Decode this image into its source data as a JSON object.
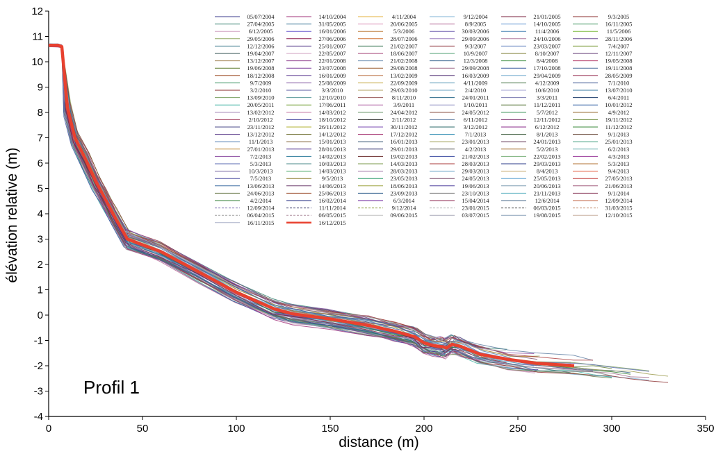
{
  "chart_data": {
    "type": "line",
    "xlabel": "distance (m)",
    "ylabel": "élévation relative (m)",
    "xlim": [
      0,
      350
    ],
    "ylim": [
      -4,
      12
    ],
    "x_ticks": [
      0,
      50,
      100,
      150,
      200,
      250,
      300,
      350
    ],
    "y_ticks": [
      -4,
      -3,
      -2,
      -1,
      0,
      1,
      2,
      3,
      4,
      5,
      6,
      7,
      8,
      9,
      10,
      11,
      12
    ],
    "annotation": "Profil 1",
    "grid": false,
    "legend_position": "top-right",
    "legend_entries": [
      "05/07/2004",
      "14/10/2004",
      "4/11/2004",
      "9/12/2004",
      "21/01/2005",
      "9/3/2005",
      "27/04/2005",
      "31/05/2005",
      "20/06/2005",
      "8/9/2005",
      "14/10/2005",
      "16/11/2005",
      "6/12/2005",
      "16/01/2006",
      "5/3/2006",
      "30/03/2006",
      "11/4/2006",
      "11/5/2006",
      "29/05/2006",
      "27/06/2006",
      "28/07/2006",
      "29/09/2006",
      "24/10/2006",
      "28/11/2006",
      "12/12/2006",
      "25/01/2007",
      "21/02/2007",
      "9/3/2007",
      "23/03/2007",
      "7/4/2007",
      "19/04/2007",
      "22/05/2007",
      "18/06/2007",
      "10/9/2007",
      "8/10/2007",
      "12/11/2007",
      "13/12/2007",
      "22/01/2008",
      "21/02/2008",
      "12/3/2008",
      "8/4/2008",
      "19/05/2008",
      "19/06/2008",
      "23/07/2008",
      "29/08/2008",
      "29/09/2008",
      "17/10/2008",
      "19/11/2008",
      "18/12/2008",
      "16/01/2009",
      "13/02/2009",
      "16/03/2009",
      "29/04/2009",
      "28/05/2009",
      "9/7/2009",
      "25/08/2009",
      "22/09/2009",
      "4/11/2009",
      "4/12/2009",
      "7/1/2010",
      "3/2/2010",
      "3/3/2010",
      "29/03/2010",
      "2/4/2010",
      "10/6/2010",
      "13/07/2010",
      "13/09/2010",
      "12/10/2010",
      "8/11/2010",
      "24/01/2011",
      "3/3/2011",
      "6/4/2011",
      "20/05/2011",
      "17/06/2011",
      "3/9/2011",
      "1/10/2011",
      "11/12/2011",
      "10/01/2012",
      "13/02/2012",
      "14/03/2012",
      "24/04/2012",
      "24/05/2012",
      "5/7/2012",
      "4/9/2012",
      "2/10/2012",
      "18/10/2012",
      "2/11/2012",
      "6/11/2012",
      "12/11/2012",
      "19/11/2012",
      "23/11/2012",
      "26/11/2012",
      "30/11/2012",
      "3/12/2012",
      "6/12/2012",
      "11/12/2012",
      "13/12/2012",
      "14/12/2012",
      "17/12/2012",
      "7/1/2013",
      "8/1/2013",
      "9/1/2013",
      "11/1/2013",
      "15/01/2013",
      "16/01/2013",
      "23/01/2013",
      "24/01/2013",
      "25/01/2013",
      "27/01/2013",
      "28/01/2013",
      "29/01/2013",
      "4/2/2013",
      "5/2/2013",
      "6/2/2013",
      "7/2/2013",
      "14/02/2013",
      "19/02/2013",
      "21/02/2013",
      "22/02/2013",
      "4/3/2013",
      "5/3/2013",
      "10/03/2013",
      "14/03/2013",
      "28/03/2013",
      "29/03/2013",
      "5/3/2013",
      "10/3/2013",
      "14/03/2013",
      "28/03/2013",
      "29/03/2013",
      "8/4/2013",
      "9/4/2013",
      "7/5/2013",
      "9/5/2013",
      "23/05/2013",
      "24/05/2013",
      "25/05/2013",
      "27/05/2013",
      "13/06/2013",
      "14/06/2013",
      "18/06/2013",
      "19/06/2013",
      "20/06/2013",
      "21/06/2013",
      "24/06/2013",
      "25/06/2013",
      "23/09/2013",
      "23/10/2013",
      "21/11/2013",
      "9/1/2014",
      "4/2/2014",
      "16/02/2014",
      "6/3/2014",
      "15/04/2014",
      "12/6/2014",
      "12/09/2014",
      "12/09/2014",
      "11/11/2014",
      "9/12/2014",
      "23/01/2015",
      "06/03/2015",
      "31/03/2015",
      "06/04/2015",
      "06/05/2015",
      "09/06/2015",
      "03/07/2015",
      "19/08/2015",
      "12/10/2015",
      "16/11/2015",
      "16/12/2015"
    ],
    "legend_colors": [
      "#3b3b8c",
      "#a0307a",
      "#e3b23c",
      "#7fb3d5",
      "#7a1f3d",
      "#8b2e2e",
      "#2e7d6b",
      "#2f6f8f",
      "#d98cb3",
      "#b06090",
      "#5a8fd0",
      "#3a8f5a",
      "#d0a0c0",
      "#6a5acd",
      "#c08040",
      "#7060b0",
      "#4682b4",
      "#7cba3c",
      "#8fa860",
      "#8b1a4a",
      "#d07030",
      "#9a7fc0",
      "#b07aa0",
      "#6a4c93",
      "#3c7a8c",
      "#4b2e83",
      "#2c6e49",
      "#8c2f39",
      "#5b7dbb",
      "#6b8e23",
      "#2f4f4f",
      "#cf9fbf",
      "#a23b72",
      "#4c9f70",
      "#7a7a2e",
      "#5e3370",
      "#a08050",
      "#8b3a8b",
      "#6a8caf",
      "#2f5d8a",
      "#3e8e41",
      "#b03060",
      "#5a7a2a",
      "#7b3f9a",
      "#9a5c2e",
      "#a06a8a",
      "#3b5ba0",
      "#4a6a9a",
      "#a0522d",
      "#6b4c9a",
      "#c07a50",
      "#5a3a7a",
      "#7ab0d0",
      "#a04060",
      "#2e8b57",
      "#7a4a9a",
      "#c0a030",
      "#4a90b0",
      "#3a6a3a",
      "#2e4a8a",
      "#8a2a2a",
      "#5a5aa0",
      "#b0a060",
      "#6aa0c0",
      "#a0a0d0",
      "#3a7aa0",
      "#7aa060",
      "#5a9a9a",
      "#9a5a5a",
      "#2a6a8a",
      "#7a7ab0",
      "#1a3a6a",
      "#3ab0a0",
      "#6a9a2a",
      "#aa5aa0",
      "#8a8ac0",
      "#4a6a2a",
      "#2a5aa0",
      "#9a7ab0",
      "#c06a9a",
      "#5a8a5a",
      "#7a3a2a",
      "#2a8a4a",
      "#8a5a1a",
      "#a03a5a",
      "#3a3a9a",
      "#1a1a1a",
      "#5a7aa0",
      "#7a2a6a",
      "#6a8a3a",
      "#4a4a8a",
      "#b0b030",
      "#7a4ab0",
      "#2a6a6a",
      "#8a2a8a",
      "#3a8a3a",
      "#5a3a8a",
      "#6a6a2a",
      "#a02a6a",
      "#2a8ab0",
      "#3a5a3a",
      "#6a4a3a",
      "#4a7ab0",
      "#7a5a2a",
      "#2a4a6a",
      "#9a9a4a",
      "#5a2a4a",
      "#3a9a7a",
      "#c08a3a",
      "#4a2a8a",
      "#2a2a6a",
      "#5a5a5a",
      "#a06a2a",
      "#6ab0b0",
      "#8a4aa0",
      "#2a7a9a",
      "#6a2a2a",
      "#3a4aa0",
      "#7ab07a",
      "#9a3a9a",
      "#5a6ab0",
      "#4a8a8a",
      "#7a9a4a",
      "#aa3a3a",
      "#2a3a8a",
      "#b07030",
      "#6a5a9a",
      "#3aa05a",
      "#9a6aa0",
      "#5a9ac0",
      "#c0a060",
      "#e05030",
      "#4a4aa0",
      "#8a7a2a",
      "#2a9a6a",
      "#7a4a6a",
      "#5aa0d0",
      "#c03a3a",
      "#3a6aa0",
      "#6a3a6a",
      "#9aa03a",
      "#4a3a9a",
      "#7a9ab0",
      "#a05a7a",
      "#6a7a4a",
      "#9a4a2a",
      "#2a5a8a",
      "#7a7a7a",
      "#5ab0c0",
      "#8a3a5a",
      "#2e7d32",
      "#1a237e",
      "#6a1b9a",
      "#8e244d",
      "#4a6a8a",
      "#c06040",
      "#7a6ab0",
      "#3a3a6a",
      "#8a9a3a",
      "#b0b0b0",
      "#4a4a4a",
      "#c08a6a",
      "#a0a0a0",
      "#b090a0",
      "#c0c0c0",
      "#a8a8b8",
      "#8aa0b8",
      "#c8b0a0",
      "#aab0c8",
      "#e8412f"
    ],
    "series_emphasized": [
      {
        "name": "16/12/2015",
        "color": "#e8412f",
        "x": [
          0,
          5,
          7,
          10,
          14,
          20,
          25,
          30,
          35,
          42,
          60,
          80,
          100,
          120,
          130,
          150,
          170,
          185,
          195,
          200,
          205,
          210,
          212,
          215,
          220,
          230,
          245,
          260,
          280
        ],
        "y": [
          10.65,
          10.65,
          10.6,
          8.2,
          7.0,
          6.1,
          5.3,
          4.6,
          3.9,
          3.0,
          2.5,
          1.7,
          0.9,
          0.25,
          0.05,
          -0.15,
          -0.4,
          -0.65,
          -0.85,
          -1.1,
          -1.2,
          -1.25,
          -1.3,
          -1.15,
          -1.25,
          -1.55,
          -1.75,
          -1.9,
          -2.0
        ]
      }
    ]
  }
}
